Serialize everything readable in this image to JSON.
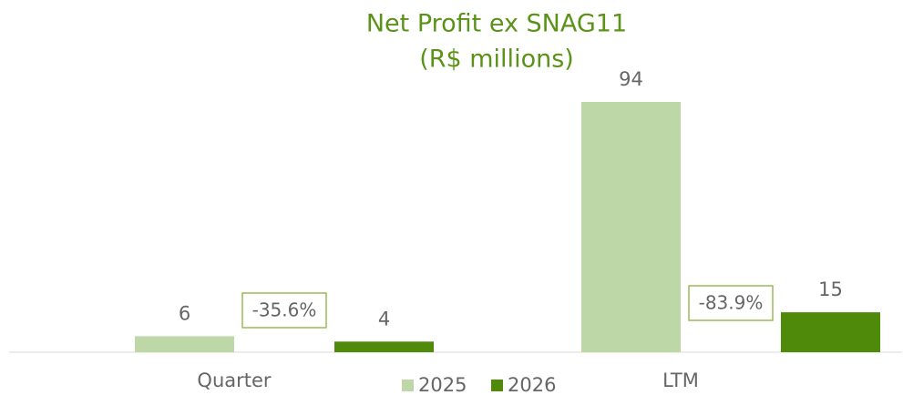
{
  "chart_data": {
    "type": "bar",
    "title": "Net Profit  ex SNAG11",
    "subtitle": "(R$ millions)",
    "categories": [
      "Quarter",
      "LTM"
    ],
    "series": [
      {
        "name": "2025",
        "color": "#bdd7a7",
        "values": [
          6,
          94
        ]
      },
      {
        "name": "2026",
        "color": "#4f8a0b",
        "values": [
          4,
          15
        ]
      }
    ],
    "annotations": [
      "-35.6%",
      "-83.9%"
    ],
    "legend": "bottom"
  }
}
